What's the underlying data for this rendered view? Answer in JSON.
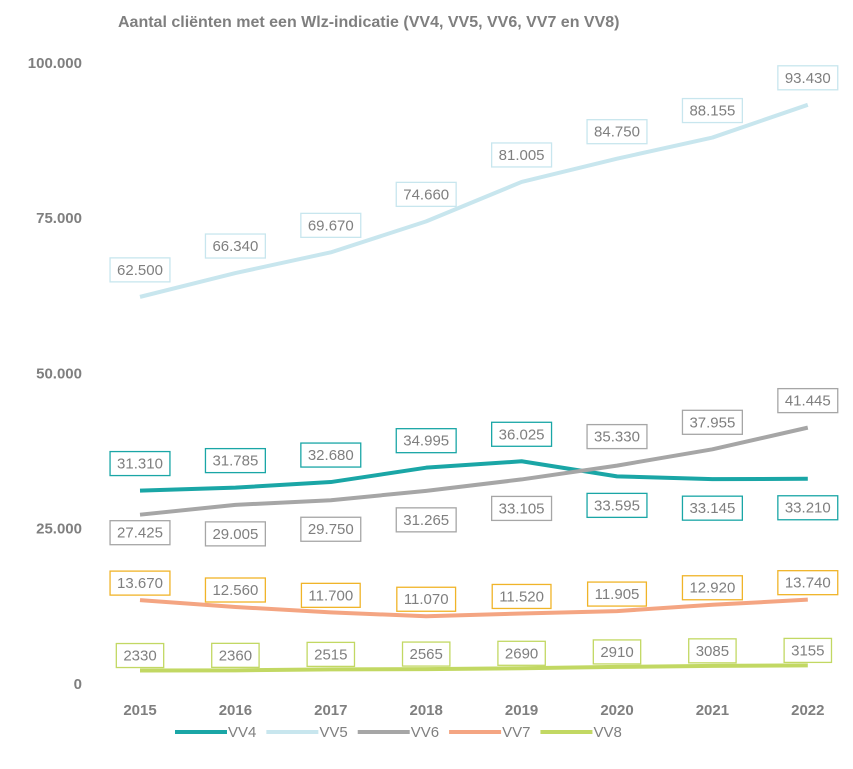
{
  "chart_data": {
    "type": "line",
    "title": "Aantal cliënten met een Wlz-indicatie (VV4, VV5, VV6, VV7 en VV8)",
    "categories": [
      "2015",
      "2016",
      "2017",
      "2018",
      "2019",
      "2020",
      "2021",
      "2022"
    ],
    "ylim": [
      0,
      100000
    ],
    "yticks": [
      0,
      {
        "value": 25000,
        "label": "25.000"
      },
      {
        "value": 50000,
        "label": "50.000"
      },
      {
        "value": 75000,
        "label": "75.000"
      },
      {
        "value": 100000,
        "label": "100.000"
      }
    ],
    "grid": false,
    "legend": "bottom",
    "series": [
      {
        "name": "VV4",
        "color": "#1aa6a6",
        "label_color": "#1aa6a6",
        "values": [
          31310,
          31785,
          32680,
          34995,
          36025,
          33595,
          33145,
          33210
        ],
        "value_labels": [
          "31.310",
          "31.785",
          "32.680",
          "34.995",
          "36.025",
          "33.595",
          "33.145",
          "33.210"
        ]
      },
      {
        "name": "VV5",
        "color": "#c8e6ee",
        "label_color": "#c8e6ee",
        "values": [
          62500,
          66340,
          69670,
          74660,
          81005,
          84750,
          88155,
          93430
        ],
        "value_labels": [
          "62.500",
          "66.340",
          "69.670",
          "74.660",
          "81.005",
          "84.750",
          "88.155",
          "93.430"
        ]
      },
      {
        "name": "VV6",
        "color": "#a6a6a6",
        "label_color": "#a6a6a6",
        "values": [
          27425,
          29005,
          29750,
          31265,
          33105,
          35330,
          37955,
          41445
        ],
        "value_labels": [
          "27.425",
          "29.005",
          "29.750",
          "31.265",
          "33.105",
          "35.330",
          "37.955",
          "41.445"
        ]
      },
      {
        "name": "VV7",
        "color": "#f4a582",
        "label_color": "#f0b429",
        "values": [
          13670,
          12560,
          11700,
          11070,
          11520,
          11905,
          12920,
          13740
        ],
        "value_labels": [
          "13.670",
          "12.560",
          "11.700",
          "11.070",
          "11.520",
          "11.905",
          "12.920",
          "13.740"
        ]
      },
      {
        "name": "VV8",
        "color": "#c2d863",
        "label_color": "#c2d863",
        "values": [
          2330,
          2360,
          2515,
          2565,
          2690,
          2910,
          3085,
          3155
        ]
      }
    ]
  }
}
